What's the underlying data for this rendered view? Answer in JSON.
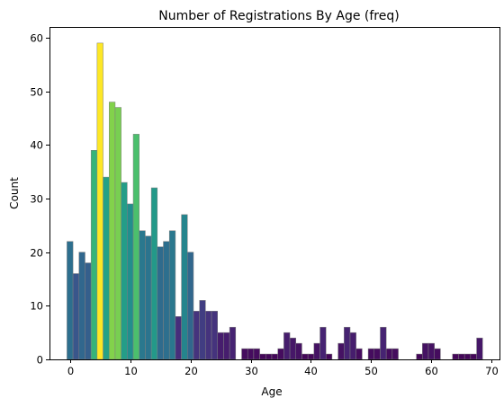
{
  "chart_data": {
    "type": "bar",
    "title": "Number of Registrations By Age (freq)",
    "xlabel": "Age",
    "ylabel": "Count",
    "xlim": [
      -3.4,
      71.3
    ],
    "ylim": [
      0,
      62
    ],
    "xticks": [
      0,
      10,
      20,
      30,
      40,
      50,
      60,
      70
    ],
    "yticks": [
      0,
      10,
      20,
      30,
      40,
      50,
      60
    ],
    "colormap": "viridis",
    "bar_edge_color": "#7f7f7f",
    "x": [
      0,
      1,
      2,
      3,
      4,
      5,
      6,
      7,
      8,
      9,
      10,
      11,
      12,
      13,
      14,
      15,
      16,
      17,
      18,
      19,
      20,
      21,
      22,
      23,
      24,
      25,
      26,
      27,
      28,
      29,
      30,
      31,
      32,
      33,
      34,
      35,
      36,
      37,
      38,
      39,
      40,
      41,
      42,
      43,
      44,
      45,
      46,
      47,
      48,
      49,
      50,
      51,
      52,
      53,
      54,
      55,
      56,
      57,
      58,
      59,
      60,
      61,
      62,
      63,
      64,
      65,
      66,
      67,
      68
    ],
    "values": [
      22,
      16,
      20,
      18,
      39,
      59,
      34,
      48,
      47,
      33,
      29,
      42,
      24,
      23,
      32,
      21,
      22,
      24,
      8,
      27,
      20,
      9,
      11,
      9,
      9,
      5,
      5,
      6,
      0,
      2,
      2,
      2,
      1,
      1,
      1,
      2,
      5,
      4,
      3,
      1,
      1,
      3,
      6,
      1,
      0,
      3,
      6,
      5,
      2,
      0,
      2,
      2,
      6,
      2,
      2,
      0,
      0,
      0,
      1,
      3,
      3,
      2,
      0,
      0,
      1,
      1,
      1,
      1,
      4
    ]
  }
}
